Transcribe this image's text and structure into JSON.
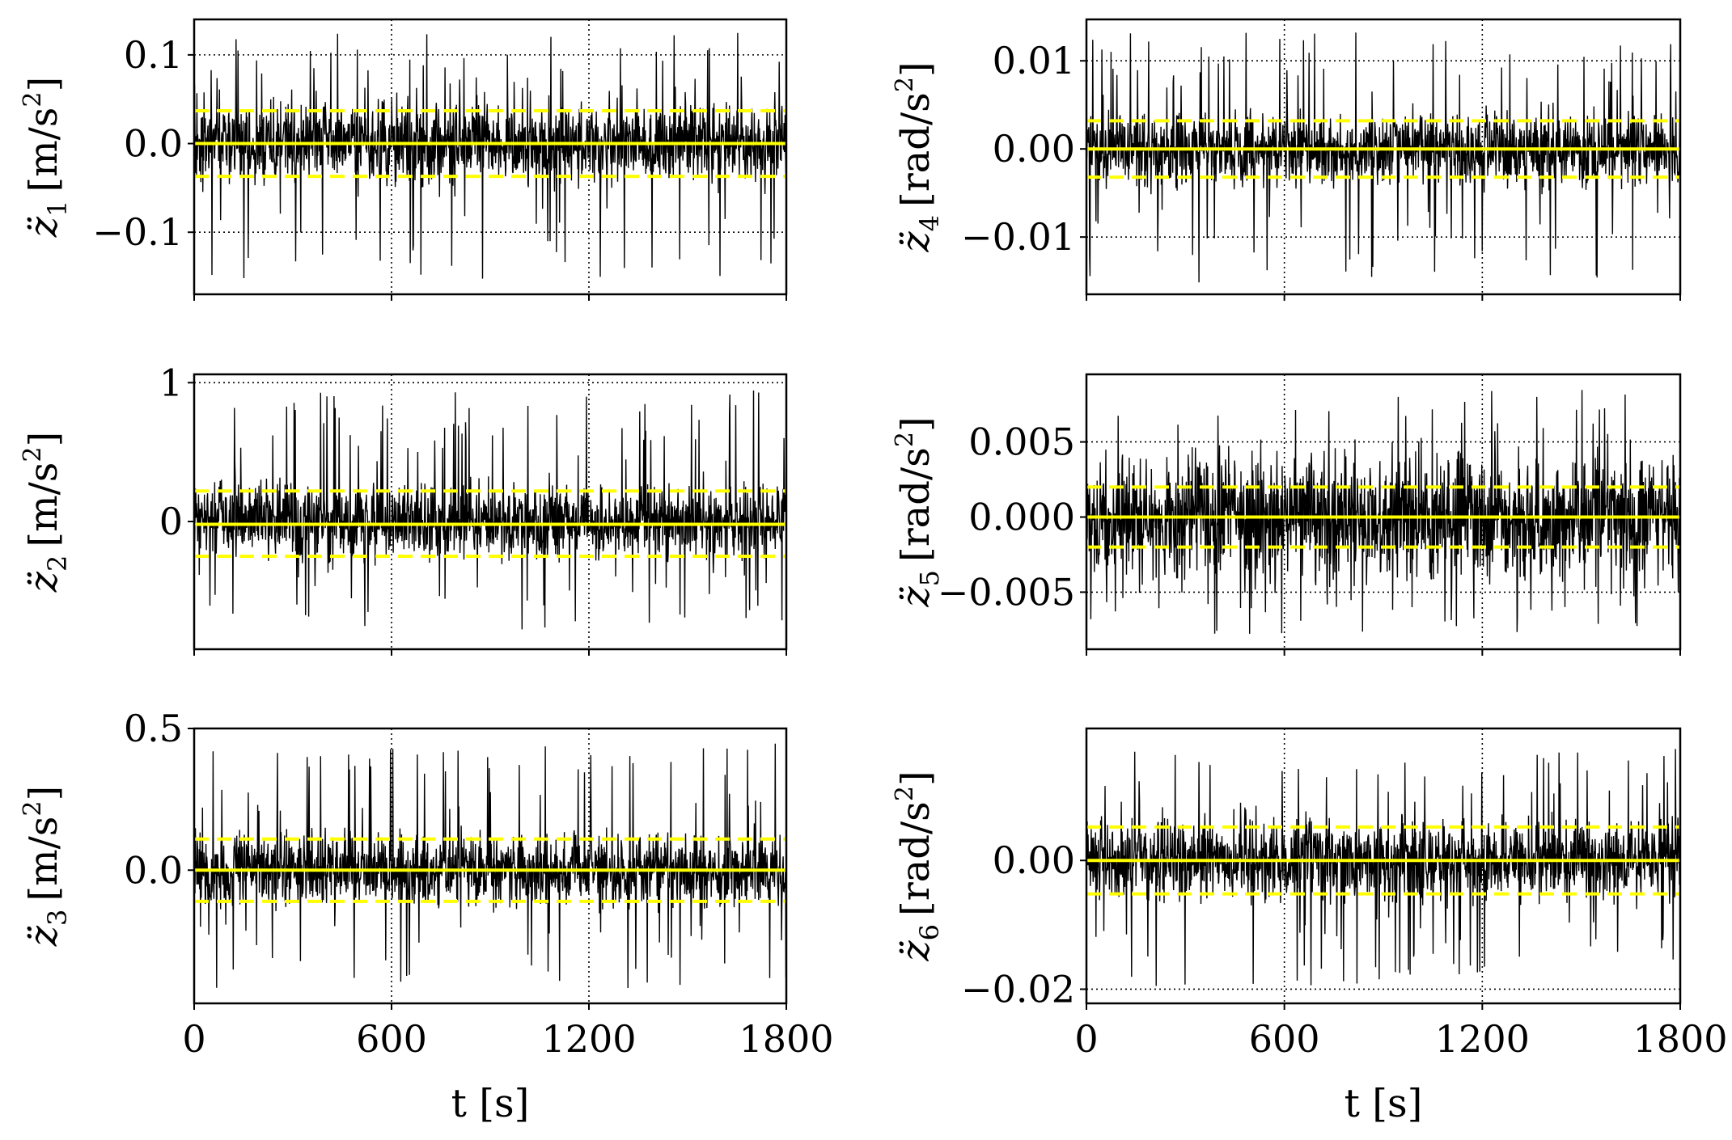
{
  "chart_data": [
    {
      "id": "z1",
      "type": "line",
      "position": "top-left",
      "ylabel": {
        "var": "z̈",
        "sub": "1",
        "unit_open": "[m/s",
        "sup": "2",
        "unit_close": "]"
      },
      "xlabel": "",
      "xlim": [
        0,
        1800
      ],
      "ylim": [
        -0.17,
        0.14
      ],
      "xticks": [
        0,
        600,
        1200,
        1800
      ],
      "xtick_labels": [
        "",
        "",
        "",
        ""
      ],
      "yticks": [
        -0.1,
        0.0,
        0.1
      ],
      "ytick_labels": [
        "−0.1",
        "0.0",
        "0.1"
      ],
      "grid": {
        "x": [
          600,
          1200
        ],
        "y": [
          -0.1,
          0.1
        ],
        "style": "dotted"
      },
      "series": [
        {
          "name": "acceleration signal",
          "color": "#000000",
          "style": "line",
          "amplitude_envelope": [
            -0.155,
            0.125
          ],
          "typical_band": 0.05
        },
        {
          "name": "mean",
          "color": "#ffff00",
          "style": "solid",
          "value": 0.0
        },
        {
          "name": "+std",
          "color": "#ffff00",
          "style": "dashed",
          "value": 0.037
        },
        {
          "name": "-std",
          "color": "#ffff00",
          "style": "dashed",
          "value": -0.037
        }
      ]
    },
    {
      "id": "z4",
      "type": "line",
      "position": "top-right",
      "ylabel": {
        "var": "z̈",
        "sub": "4",
        "unit_open": "[rad/s",
        "sup": "2",
        "unit_close": "]"
      },
      "xlabel": "",
      "xlim": [
        0,
        1800
      ],
      "ylim": [
        -0.0165,
        0.0147
      ],
      "xticks": [
        0,
        600,
        1200,
        1800
      ],
      "xtick_labels": [
        "",
        "",
        "",
        ""
      ],
      "yticks": [
        -0.01,
        0.0,
        0.01
      ],
      "ytick_labels": [
        "−0.01",
        "0.00",
        "0.01"
      ],
      "grid": {
        "x": [
          600,
          1200
        ],
        "y": [
          -0.01,
          0.01
        ],
        "style": "dotted"
      },
      "series": [
        {
          "name": "acceleration signal",
          "color": "#000000",
          "style": "line",
          "amplitude_envelope": [
            -0.0152,
            0.0133
          ],
          "typical_band": 0.0045
        },
        {
          "name": "mean",
          "color": "#ffff00",
          "style": "solid",
          "value": 0.0
        },
        {
          "name": "+std",
          "color": "#ffff00",
          "style": "dashed",
          "value": 0.0032
        },
        {
          "name": "-std",
          "color": "#ffff00",
          "style": "dashed",
          "value": -0.0032
        }
      ]
    },
    {
      "id": "z2",
      "type": "line",
      "position": "middle-left",
      "ylabel": {
        "var": "z̈",
        "sub": "2",
        "unit_open": "[m/s",
        "sup": "2",
        "unit_close": "]"
      },
      "xlabel": "",
      "xlim": [
        0,
        1800
      ],
      "ylim": [
        -0.92,
        1.06
      ],
      "xticks": [
        0,
        600,
        1200,
        1800
      ],
      "xtick_labels": [
        "",
        "",
        "",
        ""
      ],
      "yticks": [
        0,
        1
      ],
      "ytick_labels": [
        "0",
        "1"
      ],
      "grid": {
        "x": [
          600,
          1200
        ],
        "y": [
          1
        ],
        "style": "dotted"
      },
      "series": [
        {
          "name": "acceleration signal",
          "color": "#000000",
          "style": "line",
          "amplitude_envelope": [
            -0.8,
            0.95
          ],
          "typical_band": 0.3
        },
        {
          "name": "mean",
          "color": "#ffff00",
          "style": "solid",
          "value": -0.02
        },
        {
          "name": "+std",
          "color": "#ffff00",
          "style": "dashed",
          "value": 0.22
        },
        {
          "name": "-std",
          "color": "#ffff00",
          "style": "dashed",
          "value": -0.25
        }
      ]
    },
    {
      "id": "z5",
      "type": "line",
      "position": "middle-right",
      "ylabel": {
        "var": "z̈",
        "sub": "5",
        "unit_open": "[rad/s",
        "sup": "2",
        "unit_close": "]"
      },
      "xlabel": "",
      "xlim": [
        0,
        1800
      ],
      "ylim": [
        -0.0088,
        0.0095
      ],
      "xticks": [
        0,
        600,
        1200,
        1800
      ],
      "xtick_labels": [
        "",
        "",
        "",
        ""
      ],
      "yticks": [
        -0.005,
        0.0,
        0.005
      ],
      "ytick_labels": [
        "−0.005",
        "0.000",
        "0.005"
      ],
      "grid": {
        "x": [
          600,
          1200
        ],
        "y": [
          -0.005,
          0.005
        ],
        "style": "dotted"
      },
      "series": [
        {
          "name": "acceleration signal",
          "color": "#000000",
          "style": "line",
          "amplitude_envelope": [
            -0.008,
            0.0088
          ],
          "typical_band": 0.0045
        },
        {
          "name": "mean",
          "color": "#ffff00",
          "style": "solid",
          "value": 0.0
        },
        {
          "name": "+std",
          "color": "#ffff00",
          "style": "dashed",
          "value": 0.002
        },
        {
          "name": "-std",
          "color": "#ffff00",
          "style": "dashed",
          "value": -0.002
        }
      ]
    },
    {
      "id": "z3",
      "type": "line",
      "position": "bottom-left",
      "ylabel": {
        "var": "z̈",
        "sub": "3",
        "unit_open": "[m/s",
        "sup": "2",
        "unit_close": "]"
      },
      "xlabel": "t [s]",
      "xlim": [
        0,
        1800
      ],
      "ylim": [
        -0.47,
        0.5
      ],
      "xticks": [
        0,
        600,
        1200,
        1800
      ],
      "xtick_labels": [
        "0",
        "600",
        "1200",
        "1800"
      ],
      "yticks": [
        0.0,
        0.5
      ],
      "ytick_labels": [
        "0.0",
        "0.5"
      ],
      "grid": {
        "x": [
          600,
          1200
        ],
        "y": [],
        "style": "dotted"
      },
      "series": [
        {
          "name": "acceleration signal",
          "color": "#000000",
          "style": "line",
          "amplitude_envelope": [
            -0.42,
            0.45
          ],
          "typical_band": 0.14
        },
        {
          "name": "mean",
          "color": "#ffff00",
          "style": "solid",
          "value": 0.0
        },
        {
          "name": "+std",
          "color": "#ffff00",
          "style": "dashed",
          "value": 0.11
        },
        {
          "name": "-std",
          "color": "#ffff00",
          "style": "dashed",
          "value": -0.11
        }
      ]
    },
    {
      "id": "z6",
      "type": "line",
      "position": "bottom-right",
      "ylabel": {
        "var": "z̈",
        "sub": "6",
        "unit_open": "[rad/s",
        "sup": "2",
        "unit_close": "]"
      },
      "xlabel": "t [s]",
      "xlim": [
        0,
        1800
      ],
      "ylim": [
        -0.0222,
        0.0205
      ],
      "xticks": [
        0,
        600,
        1200,
        1800
      ],
      "xtick_labels": [
        "0",
        "600",
        "1200",
        "1800"
      ],
      "yticks": [
        -0.02,
        0.0
      ],
      "ytick_labels": [
        "−0.02",
        "0.00"
      ],
      "grid": {
        "x": [
          600,
          1200
        ],
        "y": [
          -0.02
        ],
        "style": "dotted"
      },
      "series": [
        {
          "name": "acceleration signal",
          "color": "#000000",
          "style": "line",
          "amplitude_envelope": [
            -0.0195,
            0.0175
          ],
          "typical_band": 0.007
        },
        {
          "name": "mean",
          "color": "#ffff00",
          "style": "solid",
          "value": 0.0
        },
        {
          "name": "+std",
          "color": "#ffff00",
          "style": "dashed",
          "value": 0.0052
        },
        {
          "name": "-std",
          "color": "#ffff00",
          "style": "dashed",
          "value": -0.0052
        }
      ]
    }
  ]
}
